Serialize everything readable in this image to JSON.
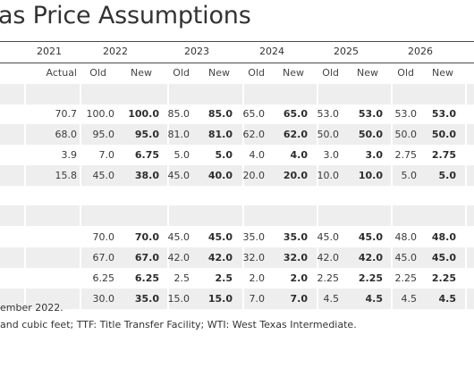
{
  "title": "as Price Assumptions",
  "years": [
    "2021",
    "2022",
    "2023",
    "2024",
    "2025",
    "2026"
  ],
  "subheaders": [
    "Actual",
    "Old",
    "New",
    "Old",
    "New",
    "Old",
    "New",
    "Old",
    "New",
    "Old",
    "New"
  ],
  "group1": [
    [
      "70.7",
      "100.0",
      "100.0",
      "85.0",
      "85.0",
      "65.0",
      "65.0",
      "53.0",
      "53.0",
      "53.0",
      "53.0"
    ],
    [
      "68.0",
      "95.0",
      "95.0",
      "81.0",
      "81.0",
      "62.0",
      "62.0",
      "50.0",
      "50.0",
      "50.0",
      "50.0"
    ],
    [
      "3.9",
      "7.0",
      "6.75",
      "5.0",
      "5.0",
      "4.0",
      "4.0",
      "3.0",
      "3.0",
      "2.75",
      "2.75"
    ],
    [
      "15.8",
      "45.0",
      "38.0",
      "45.0",
      "40.0",
      "20.0",
      "20.0",
      "10.0",
      "10.0",
      "5.0",
      "5.0"
    ]
  ],
  "group2": [
    [
      "",
      "70.0",
      "70.0",
      "45.0",
      "45.0",
      "35.0",
      "35.0",
      "45.0",
      "45.0",
      "48.0",
      "48.0"
    ],
    [
      "",
      "67.0",
      "67.0",
      "42.0",
      "42.0",
      "32.0",
      "32.0",
      "42.0",
      "42.0",
      "45.0",
      "45.0"
    ],
    [
      "",
      "6.25",
      "6.25",
      "2.5",
      "2.5",
      "2.0",
      "2.0",
      "2.25",
      "2.25",
      "2.25",
      "2.25"
    ],
    [
      "",
      "30.0",
      "35.0",
      "15.0",
      "15.0",
      "7.0",
      "7.0",
      "4.5",
      "4.5",
      "4.5",
      "4.5"
    ]
  ],
  "notes": [
    "ember 2022.",
    "and cubic feet; TTF: Title Transfer Facility; WTI: West Texas Intermediate."
  ]
}
